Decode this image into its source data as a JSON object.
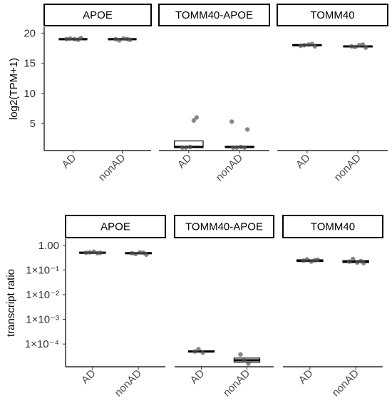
{
  "chart_data": [
    {
      "type": "box",
      "ylabel": "log2(TPM+1)",
      "yscale": "linear",
      "ylim": [
        0.5,
        21
      ],
      "yticks": [
        {
          "value": 5,
          "label": "5"
        },
        {
          "value": 10,
          "label": "10"
        },
        {
          "value": 15,
          "label": "15"
        },
        {
          "value": 20,
          "label": "20"
        }
      ],
      "categories": [
        "AD",
        "nonAD"
      ],
      "panels": [
        {
          "name": "APOE",
          "groups": [
            {
              "category": "AD",
              "q1": 18.9,
              "median": 19.0,
              "q3": 19.1,
              "points": [
                19.0,
                19.1,
                19.0,
                18.9,
                19.2
              ]
            },
            {
              "category": "nonAD",
              "q1": 18.9,
              "median": 19.0,
              "q3": 19.1,
              "points": [
                19.0,
                18.8,
                19.1,
                19.0,
                18.9
              ]
            }
          ]
        },
        {
          "name": "TOMM40-APOE",
          "groups": [
            {
              "category": "AD",
              "q1": 1.0,
              "median": 1.1,
              "q3": 2.1,
              "points": [
                1.0,
                1.0,
                1.1,
                5.5,
                6.0
              ]
            },
            {
              "category": "nonAD",
              "q1": 1.0,
              "median": 1.1,
              "q3": 1.2,
              "points": [
                1.0,
                1.0,
                1.1,
                1.0,
                4.0,
                5.3
              ]
            }
          ]
        },
        {
          "name": "TOMM40",
          "groups": [
            {
              "category": "AD",
              "q1": 17.9,
              "median": 18.0,
              "q3": 18.1,
              "points": [
                17.9,
                18.0,
                18.1,
                18.2,
                17.8
              ]
            },
            {
              "category": "nonAD",
              "q1": 17.7,
              "median": 17.8,
              "q3": 17.9,
              "points": [
                17.8,
                17.7,
                18.0,
                18.1,
                17.6
              ]
            }
          ]
        }
      ]
    },
    {
      "type": "box",
      "ylabel": "transcript ratio",
      "yscale": "log10",
      "ylim": [
        1.2e-05,
        1.8
      ],
      "yticks": [
        {
          "value": 1,
          "label": "1.00"
        },
        {
          "value": 0.1,
          "label": "1×10⁻¹"
        },
        {
          "value": 0.01,
          "label": "1×10⁻²"
        },
        {
          "value": 0.001,
          "label": "1×10⁻³"
        },
        {
          "value": 0.0001,
          "label": "1×10⁻⁴"
        }
      ],
      "categories": [
        "AD",
        "nonAD"
      ],
      "panels": [
        {
          "name": "APOE",
          "groups": [
            {
              "category": "AD",
              "q1": 0.48,
              "median": 0.5,
              "q3": 0.53,
              "points": [
                0.5,
                0.52,
                0.55,
                0.48,
                0.5
              ]
            },
            {
              "category": "nonAD",
              "q1": 0.46,
              "median": 0.48,
              "q3": 0.51,
              "points": [
                0.48,
                0.45,
                0.52,
                0.5,
                0.42
              ]
            }
          ]
        },
        {
          "name": "TOMM40-APOE",
          "groups": [
            {
              "category": "AD",
              "q1": 4.8e-05,
              "median": 5e-05,
              "q3": 5.3e-05,
              "points": [
                5e-05,
                6.2e-05,
                4.5e-05
              ]
            },
            {
              "category": "nonAD",
              "q1": 1.85e-05,
              "median": 2.2e-05,
              "q3": 2.7e-05,
              "points": [
                3.8e-05,
                2.2e-05,
                1.6e-05
              ]
            }
          ]
        },
        {
          "name": "TOMM40",
          "groups": [
            {
              "category": "AD",
              "q1": 0.22,
              "median": 0.24,
              "q3": 0.26,
              "points": [
                0.24,
                0.27,
                0.22,
                0.25,
                0.26
              ]
            },
            {
              "category": "nonAD",
              "q1": 0.2,
              "median": 0.22,
              "q3": 0.24,
              "points": [
                0.22,
                0.28,
                0.2,
                0.23,
                0.19
              ]
            }
          ]
        }
      ]
    }
  ]
}
